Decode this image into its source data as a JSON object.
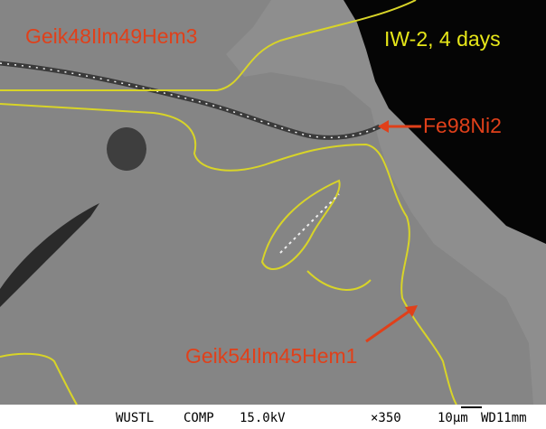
{
  "labels": {
    "top_phase": "Geik48Ilm49Hem3",
    "condition": "IW-2, 4 days",
    "metal": "Fe98Ni2",
    "bottom_phase": "Geik54Ilm45Hem1"
  },
  "footer": {
    "lab": "WUSTL",
    "mode": "COMP",
    "voltage": "15.0kV",
    "magnification": "×350",
    "scale": "10µm",
    "working_distance": "WD11mm"
  }
}
